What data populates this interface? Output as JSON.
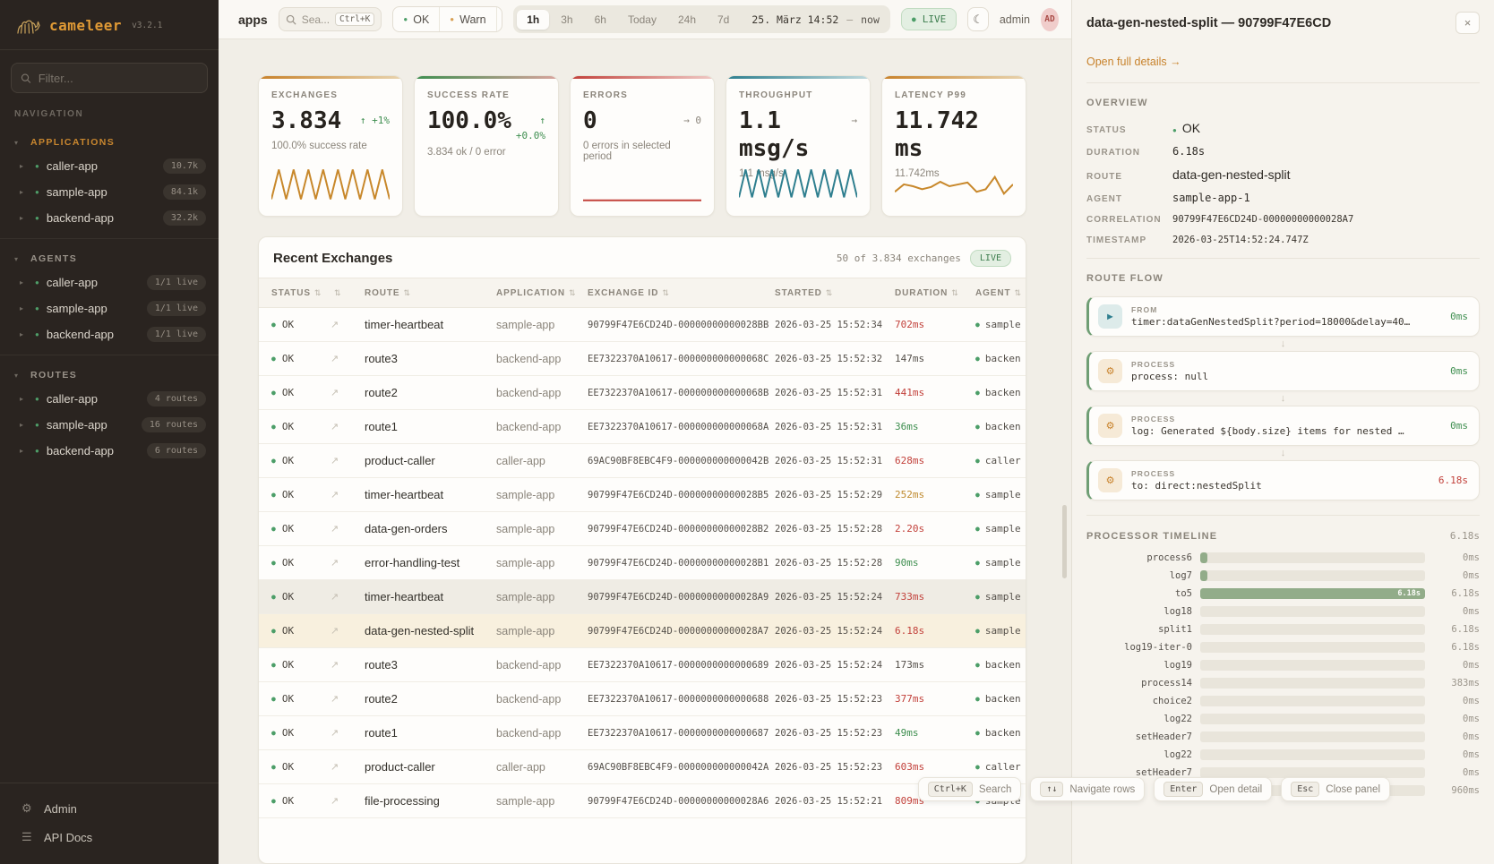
{
  "icons": {
    "sort": "⇅",
    "open_row": "↗",
    "arrow_down": "↓",
    "dot": "●",
    "caret_right": "▸",
    "caret_down": "▾",
    "close": "×",
    "moon": "☾",
    "gear": "⚙",
    "menu": "☰"
  },
  "sidebar": {
    "logo": "cameleer",
    "version": "v3.2.1",
    "filter_placeholder": "Filter...",
    "nav_label": "NAVIGATION",
    "applications": {
      "label": "APPLICATIONS",
      "items": [
        {
          "name": "caller-app",
          "badge": "10.7k"
        },
        {
          "name": "sample-app",
          "badge": "84.1k"
        },
        {
          "name": "backend-app",
          "badge": "32.2k"
        }
      ]
    },
    "agents": {
      "label": "AGENTS",
      "items": [
        {
          "name": "caller-app",
          "badge": "1/1 live"
        },
        {
          "name": "sample-app",
          "badge": "1/1 live"
        },
        {
          "name": "backend-app",
          "badge": "1/1 live"
        }
      ]
    },
    "routes": {
      "label": "ROUTES",
      "items": [
        {
          "name": "caller-app",
          "badge": "4 routes"
        },
        {
          "name": "sample-app",
          "badge": "16 routes"
        },
        {
          "name": "backend-app",
          "badge": "6 routes"
        }
      ]
    },
    "admin_label": "Admin",
    "apidocs_label": "API Docs"
  },
  "topbar": {
    "tab": "apps",
    "search_placeholder": "Sea...",
    "search_kbd": "Ctrl+K",
    "status_filters": [
      {
        "label": "OK",
        "color": "#4C9E68"
      },
      {
        "label": "Warn",
        "color": "#D9A054"
      },
      {
        "label": "E",
        "color": "#D96C5F"
      }
    ],
    "ranges": [
      {
        "label": "1h",
        "active": true
      },
      {
        "label": "3h"
      },
      {
        "label": "6h"
      },
      {
        "label": "Today"
      },
      {
        "label": "24h"
      },
      {
        "label": "7d"
      }
    ],
    "date_label": "25. März 14:52",
    "date_sep": "—",
    "date_now": "now",
    "live_label": "LIVE",
    "user": "admin",
    "avatar": "AD"
  },
  "kpis": [
    {
      "label": "EXCHANGES",
      "value": "3.834",
      "trend": "↑ +1%",
      "trend_color": "green",
      "sub": "100.0% success rate",
      "accent": "orange",
      "spark_color": "#C8882B",
      "spark": [
        0.15,
        0.95,
        0.15,
        0.95,
        0.15,
        0.95,
        0.15,
        0.95,
        0.15,
        0.95,
        0.15,
        0.95,
        0.15,
        0.95,
        0.15,
        0.95,
        0.15
      ]
    },
    {
      "label": "SUCCESS RATE",
      "value": "100.0%",
      "trend": "↑",
      "trend2": "+0.0%",
      "trend_color": "green",
      "sub": "3.834 ok / 0 error",
      "accent": "green"
    },
    {
      "label": "ERRORS",
      "value": "0",
      "trend": "→ 0",
      "trend_color": "gray",
      "sub": "0 errors in selected period",
      "accent": "red",
      "spark_color": "#C2413B",
      "spark": [
        0.12,
        0.12
      ]
    },
    {
      "label": "THROUGHPUT",
      "value": "1.1 msg/s",
      "trend": "→",
      "trend_color": "gray",
      "sub": "1.1 msg/s",
      "accent": "teal",
      "spark_color": "#2F7F8F",
      "spark": [
        0.2,
        0.95,
        0.2,
        0.95,
        0.2,
        0.95,
        0.2,
        0.95,
        0.2,
        0.95,
        0.2,
        0.95,
        0.2,
        0.95,
        0.2,
        0.95,
        0.2,
        0.95,
        0.2
      ]
    },
    {
      "label": "LATENCY P99",
      "value": "11.742 ms",
      "sub": "11.742ms",
      "accent": "orange",
      "spark_color": "#C8882B",
      "spark": [
        0.35,
        0.55,
        0.5,
        0.42,
        0.48,
        0.62,
        0.5,
        0.55,
        0.6,
        0.35,
        0.42,
        0.75,
        0.3,
        0.55
      ]
    }
  ],
  "table": {
    "title": "Recent Exchanges",
    "count": "50 of 3.834 exchanges",
    "live": "LIVE",
    "columns": [
      {
        "label": "STATUS"
      },
      {
        "label": ""
      },
      {
        "label": "ROUTE"
      },
      {
        "label": "APPLICATION"
      },
      {
        "label": "EXCHANGE ID"
      },
      {
        "label": "STARTED"
      },
      {
        "label": "DURATION"
      },
      {
        "label": "AGENT"
      }
    ],
    "rows": [
      {
        "status": "OK",
        "route": "timer-heartbeat",
        "app": "sample-app",
        "id": "90799F47E6CD24D-00000000000028BB",
        "started": "2026-03-25 15:52:34",
        "dur": "702ms",
        "dur_color": "red",
        "agent": "sample"
      },
      {
        "status": "OK",
        "route": "route3",
        "app": "backend-app",
        "id": "EE7322370A10617-000000000000068C",
        "started": "2026-03-25 15:52:32",
        "dur": "147ms",
        "dur_color": "plain",
        "agent": "backen"
      },
      {
        "status": "OK",
        "route": "route2",
        "app": "backend-app",
        "id": "EE7322370A10617-000000000000068B",
        "started": "2026-03-25 15:52:31",
        "dur": "441ms",
        "dur_color": "red",
        "agent": "backen"
      },
      {
        "status": "OK",
        "route": "route1",
        "app": "backend-app",
        "id": "EE7322370A10617-000000000000068A",
        "started": "2026-03-25 15:52:31",
        "dur": "36ms",
        "dur_color": "green",
        "agent": "backen"
      },
      {
        "status": "OK",
        "route": "product-caller",
        "app": "caller-app",
        "id": "69AC90BF8EBC4F9-000000000000042B",
        "started": "2026-03-25 15:52:31",
        "dur": "628ms",
        "dur_color": "red",
        "agent": "caller"
      },
      {
        "status": "OK",
        "route": "timer-heartbeat",
        "app": "sample-app",
        "id": "90799F47E6CD24D-00000000000028B5",
        "started": "2026-03-25 15:52:29",
        "dur": "252ms",
        "dur_color": "amber",
        "agent": "sample"
      },
      {
        "status": "OK",
        "route": "data-gen-orders",
        "app": "sample-app",
        "id": "90799F47E6CD24D-00000000000028B2",
        "started": "2026-03-25 15:52:28",
        "dur": "2.20s",
        "dur_color": "red",
        "agent": "sample"
      },
      {
        "status": "OK",
        "route": "error-handling-test",
        "app": "sample-app",
        "id": "90799F47E6CD24D-00000000000028B1",
        "started": "2026-03-25 15:52:28",
        "dur": "90ms",
        "dur_color": "green",
        "agent": "sample"
      },
      {
        "status": "OK",
        "route": "timer-heartbeat",
        "app": "sample-app",
        "id": "90799F47E6CD24D-00000000000028A9",
        "started": "2026-03-25 15:52:24",
        "dur": "733ms",
        "dur_color": "red",
        "agent": "sample",
        "state": "hover"
      },
      {
        "status": "OK",
        "route": "data-gen-nested-split",
        "app": "sample-app",
        "id": "90799F47E6CD24D-00000000000028A7",
        "started": "2026-03-25 15:52:24",
        "dur": "6.18s",
        "dur_color": "red",
        "agent": "sample",
        "state": "selected"
      },
      {
        "status": "OK",
        "route": "route3",
        "app": "backend-app",
        "id": "EE7322370A10617-0000000000000689",
        "started": "2026-03-25 15:52:24",
        "dur": "173ms",
        "dur_color": "plain",
        "agent": "backen"
      },
      {
        "status": "OK",
        "route": "route2",
        "app": "backend-app",
        "id": "EE7322370A10617-0000000000000688",
        "started": "2026-03-25 15:52:23",
        "dur": "377ms",
        "dur_color": "red",
        "agent": "backen"
      },
      {
        "status": "OK",
        "route": "route1",
        "app": "backend-app",
        "id": "EE7322370A10617-0000000000000687",
        "started": "2026-03-25 15:52:23",
        "dur": "49ms",
        "dur_color": "green",
        "agent": "backen"
      },
      {
        "status": "OK",
        "route": "product-caller",
        "app": "caller-app",
        "id": "69AC90BF8EBC4F9-000000000000042A",
        "started": "2026-03-25 15:52:23",
        "dur": "603ms",
        "dur_color": "red",
        "agent": "caller"
      },
      {
        "status": "OK",
        "route": "file-processing",
        "app": "sample-app",
        "id": "90799F47E6CD24D-00000000000028A6",
        "started": "2026-03-25 15:52:21",
        "dur": "809ms",
        "dur_color": "red",
        "agent": "sample"
      }
    ]
  },
  "panel": {
    "title": "data-gen-nested-split — 90799F47E6CD",
    "link": "Open full details →",
    "overview": {
      "label": "OVERVIEW",
      "items": [
        {
          "k": "STATUS",
          "v": "OK",
          "type": "status"
        },
        {
          "k": "DURATION",
          "v": "6.18s",
          "type": "mono"
        },
        {
          "k": "ROUTE",
          "v": "data-gen-nested-split",
          "type": "text"
        },
        {
          "k": "AGENT",
          "v": "sample-app-1",
          "type": "mono"
        },
        {
          "k": "CORRELATION",
          "v": "90799F47E6CD24D-00000000000028A7",
          "type": "mono-sm"
        },
        {
          "k": "TIMESTAMP",
          "v": "2026-03-25T14:52:24.747Z",
          "type": "mono-sm"
        }
      ]
    },
    "flow": {
      "label": "ROUTE FLOW",
      "steps": [
        {
          "type": "FROM",
          "icon": "from",
          "glyph": "►",
          "text": "timer:dataGenNestedSplit?period=18000&delay=40…",
          "dur": "0ms",
          "dur_color": "green"
        },
        {
          "type": "PROCESS",
          "icon": "process",
          "glyph": "⚙",
          "text": "process: null",
          "dur": "0ms",
          "dur_color": "green",
          "arrow": "↓"
        },
        {
          "type": "PROCESS",
          "icon": "process",
          "glyph": "⚙",
          "text": "log: Generated ${body.size} items for nested …",
          "dur": "0ms",
          "dur_color": "green",
          "arrow": "↓"
        },
        {
          "type": "PROCESS",
          "icon": "process",
          "glyph": "⚙",
          "text": "to: direct:nestedSplit",
          "dur": "6.18s",
          "dur_color": "red",
          "arrow": "↓"
        }
      ]
    },
    "timeline": {
      "label": "PROCESSOR TIMELINE",
      "total": "6.18s",
      "rows": [
        {
          "name": "process6",
          "value": "0ms",
          "bar": 3
        },
        {
          "name": "log7",
          "value": "0ms",
          "bar": 3
        },
        {
          "name": "to5",
          "value": "6.18s",
          "bar": 100,
          "bar_label": "6.18s"
        },
        {
          "name": "log18",
          "value": "0ms",
          "bar": 0
        },
        {
          "name": "split1",
          "value": "6.18s",
          "bar": 0
        },
        {
          "name": "log19-iter-0",
          "value": "6.18s",
          "bar": 0
        },
        {
          "name": "log19",
          "value": "0ms",
          "bar": 0
        },
        {
          "name": "process14",
          "value": "383ms",
          "bar": 0
        },
        {
          "name": "choice2",
          "value": "0ms",
          "bar": 0
        },
        {
          "name": "log22",
          "value": "0ms",
          "bar": 0
        },
        {
          "name": "setHeader7",
          "value": "0ms",
          "bar": 0
        },
        {
          "name": "log22",
          "value": "0ms",
          "bar": 0
        },
        {
          "name": "setHeader7",
          "value": "0ms",
          "bar": 0
        },
        {
          "name": "to9",
          "value": "960ms",
          "bar": 0
        }
      ]
    }
  },
  "shortcuts": [
    {
      "key": "Ctrl+K",
      "label": "Search"
    },
    {
      "key": "↑↓",
      "label": "Navigate rows"
    },
    {
      "key": "Enter",
      "label": "Open detail"
    },
    {
      "key": "Esc",
      "label": "Close panel"
    }
  ]
}
